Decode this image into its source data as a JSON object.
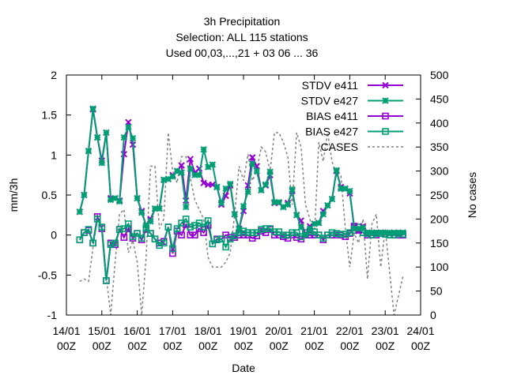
{
  "chart_data": {
    "type": "line",
    "title_lines": [
      "3h Precipitation",
      "Selection: ALL     115 stations",
      "Used  00,03,...,21  + 03 06 ... 36"
    ],
    "xlabel": "Date",
    "ylabel": "mm/3h",
    "y2label": "No cases",
    "xlim": [
      0,
      10
    ],
    "ylim": [
      -1,
      2
    ],
    "y2lim": [
      0,
      500
    ],
    "x_ticks": [
      {
        "x": 0,
        "line1": "14/01",
        "line2": "00Z"
      },
      {
        "x": 1,
        "line1": "15/01",
        "line2": "00Z"
      },
      {
        "x": 2,
        "line1": "16/01",
        "line2": "00Z"
      },
      {
        "x": 3,
        "line1": "17/01",
        "line2": "00Z"
      },
      {
        "x": 4,
        "line1": "18/01",
        "line2": "00Z"
      },
      {
        "x": 5,
        "line1": "19/01",
        "line2": "00Z"
      },
      {
        "x": 6,
        "line1": "20/01",
        "line2": "00Z"
      },
      {
        "x": 7,
        "line1": "21/01",
        "line2": "00Z"
      },
      {
        "x": 8,
        "line1": "22/01",
        "line2": "00Z"
      },
      {
        "x": 9,
        "line1": "23/01",
        "line2": "00Z"
      },
      {
        "x": 10,
        "line1": "24/01",
        "line2": "00Z"
      }
    ],
    "y_ticks": [
      "-1",
      "-0.5",
      "0",
      "0.5",
      "1",
      "1.5",
      "2"
    ],
    "y2_ticks": [
      "0",
      "50",
      "100",
      "150",
      "200",
      "250",
      "300",
      "350",
      "400",
      "450",
      "500"
    ],
    "legend_position": "top-right",
    "x": [
      0.375,
      0.5,
      0.625,
      0.75,
      0.875,
      1.0,
      1.125,
      1.25,
      1.375,
      1.5,
      1.625,
      1.75,
      1.875,
      2.0,
      2.125,
      2.25,
      2.375,
      2.5,
      2.625,
      2.75,
      2.875,
      3.0,
      3.125,
      3.25,
      3.375,
      3.5,
      3.625,
      3.75,
      3.875,
      4.0,
      4.125,
      4.25,
      4.375,
      4.5,
      4.625,
      4.75,
      4.875,
      5.0,
      5.125,
      5.25,
      5.375,
      5.5,
      5.625,
      5.75,
      5.875,
      6.0,
      6.125,
      6.25,
      6.375,
      6.5,
      6.625,
      6.75,
      6.875,
      7.0,
      7.125,
      7.25,
      7.375,
      7.5,
      7.625,
      7.75,
      7.875,
      8.0,
      8.125,
      8.25,
      8.375,
      8.5,
      8.625,
      8.75,
      8.875,
      9.0,
      9.125,
      9.25,
      9.375,
      9.5
    ],
    "series": [
      {
        "name": "STDV e411",
        "color": "#9400d3",
        "marker": "x",
        "values": [
          0.29,
          0.5,
          1.05,
          1.57,
          1.22,
          0.93,
          1.28,
          0.46,
          0.46,
          0.43,
          1.01,
          1.41,
          1.13,
          0.46,
          0.3,
          0.12,
          0.2,
          0.33,
          0.33,
          0.69,
          0.7,
          0.75,
          0.8,
          0.87,
          0.43,
          0.95,
          0.78,
          0.83,
          0.65,
          0.63,
          0.63,
          0.6,
          0.38,
          0.49,
          0.62,
          0.26,
          0.08,
          0.3,
          0.62,
          0.97,
          0.86,
          0.56,
          0.62,
          0.75,
          0.4,
          0.4,
          0.35,
          0.4,
          0.55,
          0.25,
          0.18,
          0.0,
          0.11,
          0.14,
          0.15,
          0.3,
          0.37,
          0.45,
          0.8,
          0.6,
          0.58,
          0.52,
          0.11,
          0.05,
          0.11,
          0.03,
          0.03,
          0.03,
          0.03,
          0.03,
          0.03,
          0.03,
          0.03,
          0.03
        ]
      },
      {
        "name": "STDV e427",
        "color": "#009e73",
        "marker": "star",
        "values": [
          0.29,
          0.5,
          1.05,
          1.58,
          1.22,
          0.9,
          1.28,
          0.44,
          0.46,
          0.42,
          1.22,
          1.35,
          1.21,
          0.46,
          0.28,
          0.12,
          0.17,
          0.33,
          0.33,
          0.69,
          0.7,
          0.73,
          0.8,
          0.78,
          0.35,
          0.83,
          0.75,
          0.75,
          1.07,
          0.85,
          0.88,
          0.6,
          0.4,
          0.58,
          0.64,
          0.26,
          0.07,
          0.36,
          0.54,
          0.89,
          0.8,
          0.56,
          0.63,
          0.79,
          0.41,
          0.41,
          0.35,
          0.38,
          0.57,
          0.25,
          0.1,
          0.0,
          0.08,
          0.14,
          0.15,
          0.26,
          0.37,
          0.45,
          0.81,
          0.58,
          0.58,
          0.55,
          0.08,
          0.08,
          0.09,
          0.03,
          0.03,
          0.03,
          0.03,
          0.03,
          0.03,
          0.03,
          0.03,
          0.03
        ]
      },
      {
        "name": "BIAS e411",
        "color": "#9400d3",
        "marker": "square",
        "values": [
          -0.06,
          0.03,
          0.06,
          -0.1,
          0.23,
          0.08,
          -0.57,
          -0.1,
          -0.12,
          0.07,
          -0.03,
          0.08,
          -0.04,
          0.02,
          -0.06,
          0.07,
          0.02,
          -0.05,
          -0.1,
          -0.08,
          0.1,
          -0.23,
          0.05,
          0.0,
          0.13,
          0.0,
          0.0,
          0.08,
          0.03,
          0.12,
          -0.11,
          -0.05,
          -0.05,
          0.0,
          -0.03,
          -0.03,
          0.0,
          0.0,
          0.0,
          -0.04,
          -0.01,
          0.05,
          0.03,
          0.07,
          0.0,
          0.0,
          -0.02,
          -0.04,
          0.0,
          -0.03,
          -0.05,
          0.0,
          0.0,
          0.0,
          0.0,
          -0.06,
          0.0,
          0.0,
          0.0,
          0.0,
          -0.02,
          0.02,
          0.11,
          0.06,
          0.03,
          0.0,
          0.0,
          0.0,
          0.02,
          0.01,
          0.0,
          0.0,
          0.0,
          0.0
        ]
      },
      {
        "name": "BIAS e427",
        "color": "#009e73",
        "marker": "square",
        "values": [
          -0.06,
          0.03,
          0.07,
          -0.1,
          0.2,
          0.1,
          -0.57,
          -0.12,
          -0.1,
          0.07,
          0.08,
          0.14,
          -0.02,
          0.02,
          -0.04,
          0.09,
          0.02,
          -0.05,
          -0.13,
          -0.1,
          0.1,
          -0.17,
          0.08,
          0.15,
          0.2,
          0.1,
          0.12,
          0.15,
          0.1,
          0.18,
          -0.11,
          -0.06,
          -0.05,
          -0.15,
          -0.05,
          -0.01,
          0.03,
          0.05,
          0.03,
          0.03,
          0.03,
          0.07,
          0.08,
          0.08,
          0.04,
          0.04,
          0.0,
          0.0,
          0.03,
          0.03,
          -0.02,
          0.03,
          0.05,
          0.04,
          0.0,
          -0.04,
          0.0,
          0.03,
          0.02,
          0.01,
          0.01,
          0.03,
          0.06,
          0.1,
          0.03,
          0.02,
          0.0,
          0.02,
          0.02,
          0.01,
          0.0,
          0.0,
          0.02,
          0.01
        ]
      },
      {
        "name": "CASES",
        "color": "#808080",
        "marker": "none",
        "dashed": true,
        "axis": "y2",
        "values": [
          70,
          75,
          70,
          140,
          200,
          190,
          80,
          0,
          110,
          210,
          220,
          130,
          155,
          110,
          0,
          120,
          310,
          310,
          180,
          200,
          380,
          300,
          275,
          330,
          330,
          285,
          240,
          220,
          200,
          120,
          100,
          100,
          100,
          110,
          130,
          210,
          310,
          280,
          335,
          280,
          300,
          350,
          340,
          300,
          380,
          380,
          360,
          330,
          230,
          380,
          350,
          230,
          200,
          160,
          360,
          320,
          380,
          320,
          290,
          290,
          180,
          100,
          170,
          150,
          200,
          75,
          190,
          210,
          100,
          180,
          90,
          0,
          40,
          80
        ]
      }
    ]
  }
}
